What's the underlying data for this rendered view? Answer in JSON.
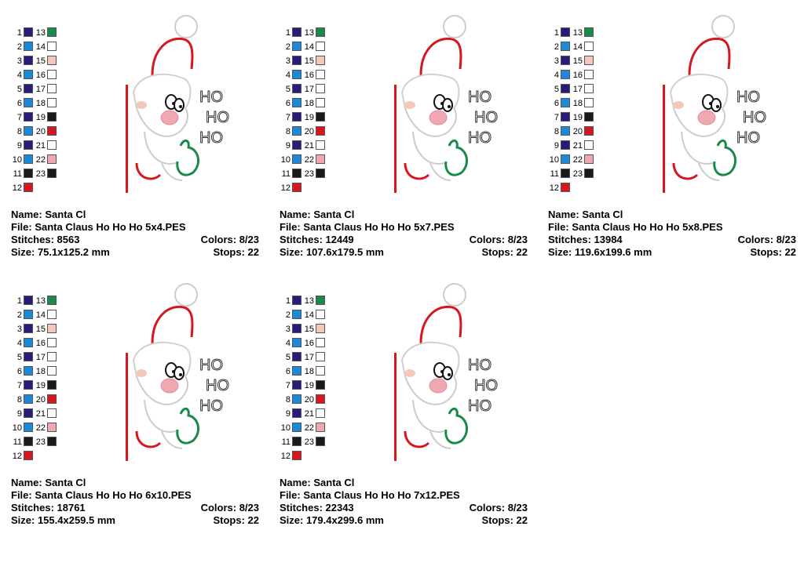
{
  "palette_numbers": [
    "1",
    "2",
    "3",
    "4",
    "5",
    "6",
    "7",
    "8",
    "9",
    "10",
    "11",
    "12",
    "13",
    "14",
    "15",
    "16",
    "17",
    "18",
    "19",
    "20",
    "21",
    "22",
    "23"
  ],
  "left_colors": [
    "#2a1a7a",
    "#1a8ad8",
    "#2a1a7a",
    "#1a8ad8",
    "#2a1a7a",
    "#1a8ad8",
    "#2a1a7a",
    "#1a8ad8",
    "#2a1a7a",
    "#1a8ad8",
    "#1a1a1a",
    "#d8161e"
  ],
  "right_colors": [
    "#1a8a4a",
    "#ffffff",
    "#f4c8b8",
    "#ffffff",
    "#ffffff",
    "#ffffff",
    "#1a1a1a",
    "#d8161e",
    "#ffffff",
    "#f0a8b0",
    "#1a1a1a"
  ],
  "art_text": [
    "HO",
    "HO",
    "HO"
  ],
  "cards": [
    {
      "name": "Name: Santa Cl",
      "file": "File: Santa Claus Ho Ho Ho 5x4.PES",
      "stitches": "Stitches: 8563",
      "colors": "Colors: 8/23",
      "size": "Size: 75.1x125.2 mm",
      "stops": "Stops: 22"
    },
    {
      "name": "Name: Santa Cl",
      "file": "File: Santa Claus Ho Ho Ho 5x7.PES",
      "stitches": "Stitches: 12449",
      "colors": "Colors: 8/23",
      "size": "Size: 107.6x179.5 mm",
      "stops": "Stops: 22"
    },
    {
      "name": "Name: Santa Cl",
      "file": "File: Santa Claus Ho Ho Ho 5x8.PES",
      "stitches": "Stitches: 13984",
      "colors": "Colors: 8/23",
      "size": "Size: 119.6x199.6 mm",
      "stops": "Stops: 22"
    },
    {
      "name": "Name: Santa Cl",
      "file": "File: Santa Claus Ho Ho Ho 6x10.PES",
      "stitches": "Stitches: 18761",
      "colors": "Colors: 8/23",
      "size": "Size: 155.4x259.5 mm",
      "stops": "Stops: 22"
    },
    {
      "name": "Name: Santa Cl",
      "file": "File: Santa Claus Ho Ho Ho 7x12.PES",
      "stitches": "Stitches: 22343",
      "colors": "Colors: 8/23",
      "size": "Size: 179.4x299.6 mm",
      "stops": "Stops: 22"
    }
  ]
}
